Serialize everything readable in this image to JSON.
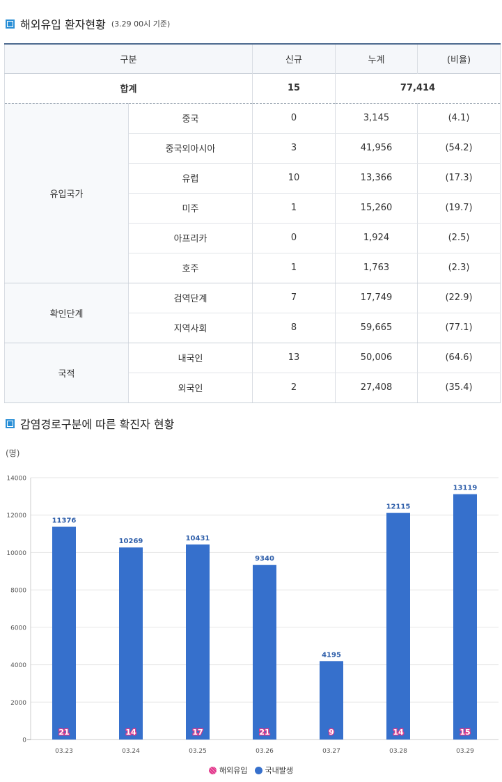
{
  "section1": {
    "title": "해외유입 환자현황",
    "subtitle": "(3.29 00시 기준)",
    "headers": [
      "구분",
      "신규",
      "누계",
      "(비율)"
    ],
    "total": {
      "label": "합계",
      "new": "15",
      "cumulative": "77,414"
    },
    "groups": [
      {
        "name": "유입국가",
        "rows": [
          {
            "label": "중국",
            "new": "0",
            "cumulative": "3,145",
            "ratio": "(4.1)"
          },
          {
            "label": "중국외아시아",
            "new": "3",
            "cumulative": "41,956",
            "ratio": "(54.2)"
          },
          {
            "label": "유럽",
            "new": "10",
            "cumulative": "13,366",
            "ratio": "(17.3)"
          },
          {
            "label": "미주",
            "new": "1",
            "cumulative": "15,260",
            "ratio": "(19.7)"
          },
          {
            "label": "아프리카",
            "new": "0",
            "cumulative": "1,924",
            "ratio": "(2.5)"
          },
          {
            "label": "호주",
            "new": "1",
            "cumulative": "1,763",
            "ratio": "(2.3)"
          }
        ]
      },
      {
        "name": "확인단계",
        "rows": [
          {
            "label": "검역단계",
            "new": "7",
            "cumulative": "17,749",
            "ratio": "(22.9)"
          },
          {
            "label": "지역사회",
            "new": "8",
            "cumulative": "59,665",
            "ratio": "(77.1)"
          }
        ]
      },
      {
        "name": "국적",
        "rows": [
          {
            "label": "내국인",
            "new": "13",
            "cumulative": "50,006",
            "ratio": "(64.6)"
          },
          {
            "label": "외국인",
            "new": "2",
            "cumulative": "27,408",
            "ratio": "(35.4)"
          }
        ]
      }
    ]
  },
  "section2": {
    "title": "감염경로구분에 따른 확진자 현황"
  },
  "chart_data": {
    "type": "bar",
    "unit_label": "(명)",
    "categories": [
      "03.23",
      "03.24",
      "03.25",
      "03.26",
      "03.27",
      "03.28",
      "03.29"
    ],
    "series": [
      {
        "name": "국내발생",
        "values": [
          11376,
          10269,
          10431,
          9340,
          4195,
          12115,
          13119
        ],
        "color": "#3670cc"
      },
      {
        "name": "해외유입",
        "values": [
          21,
          14,
          17,
          21,
          9,
          14,
          15
        ],
        "color": "#e0368a"
      }
    ],
    "ylim": [
      0,
      14000
    ],
    "yticks": [
      0,
      2000,
      4000,
      6000,
      8000,
      10000,
      12000,
      14000
    ],
    "legend_position": "bottom",
    "grid": true
  }
}
